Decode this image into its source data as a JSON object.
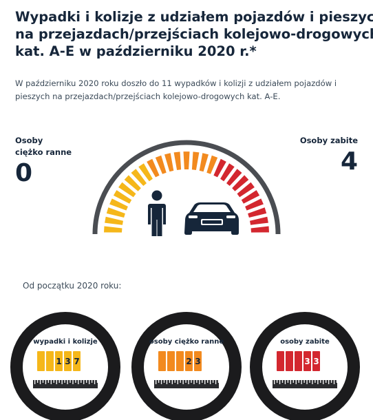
{
  "header": {
    "title_lines": [
      "Wypadki i kolizje z udziałem pojazdów i pieszych",
      "na przejazdach/przejściach kolejowo-drogowych",
      "kat. A-E w październiku 2020 r.*"
    ]
  },
  "intro": {
    "lines": [
      "W październiku 2020 roku doszło do 11 wypadków i kolizji z udziałem pojazdów i",
      "pieszych na przejazdach/przejściach kolejowo-drogowych kat. A-E."
    ]
  },
  "stats": {
    "injured": {
      "label_lines": [
        "Osoby",
        "ciężko ranne"
      ],
      "value": "0"
    },
    "killed": {
      "label_lines": [
        "Osoby zabite"
      ],
      "value": "4"
    }
  },
  "gauge": {
    "icons": [
      "pedestrian-icon",
      "car-icon"
    ],
    "colors": {
      "frame": "#4a4d52",
      "yellow": "#f5b71a",
      "orange": "#f28a1f",
      "red": "#d3272f",
      "figure": "#16263a"
    }
  },
  "since": {
    "label": "Od początku 2020 roku:"
  },
  "counters": [
    {
      "title": "wypadki i kolizje",
      "digits": [
        "",
        "",
        "1",
        "3",
        "7"
      ],
      "color": "#f5b71a",
      "text_color": "#16263a"
    },
    {
      "title": "osoby ciężko ranne",
      "digits": [
        "",
        "",
        "",
        "2",
        "3"
      ],
      "color": "#f28a1f",
      "text_color": "#16263a"
    },
    {
      "title": "osoby zabite",
      "digits": [
        "",
        "",
        "",
        "3",
        "3"
      ],
      "color": "#d3272f",
      "text_color": "#ffffff"
    }
  ]
}
